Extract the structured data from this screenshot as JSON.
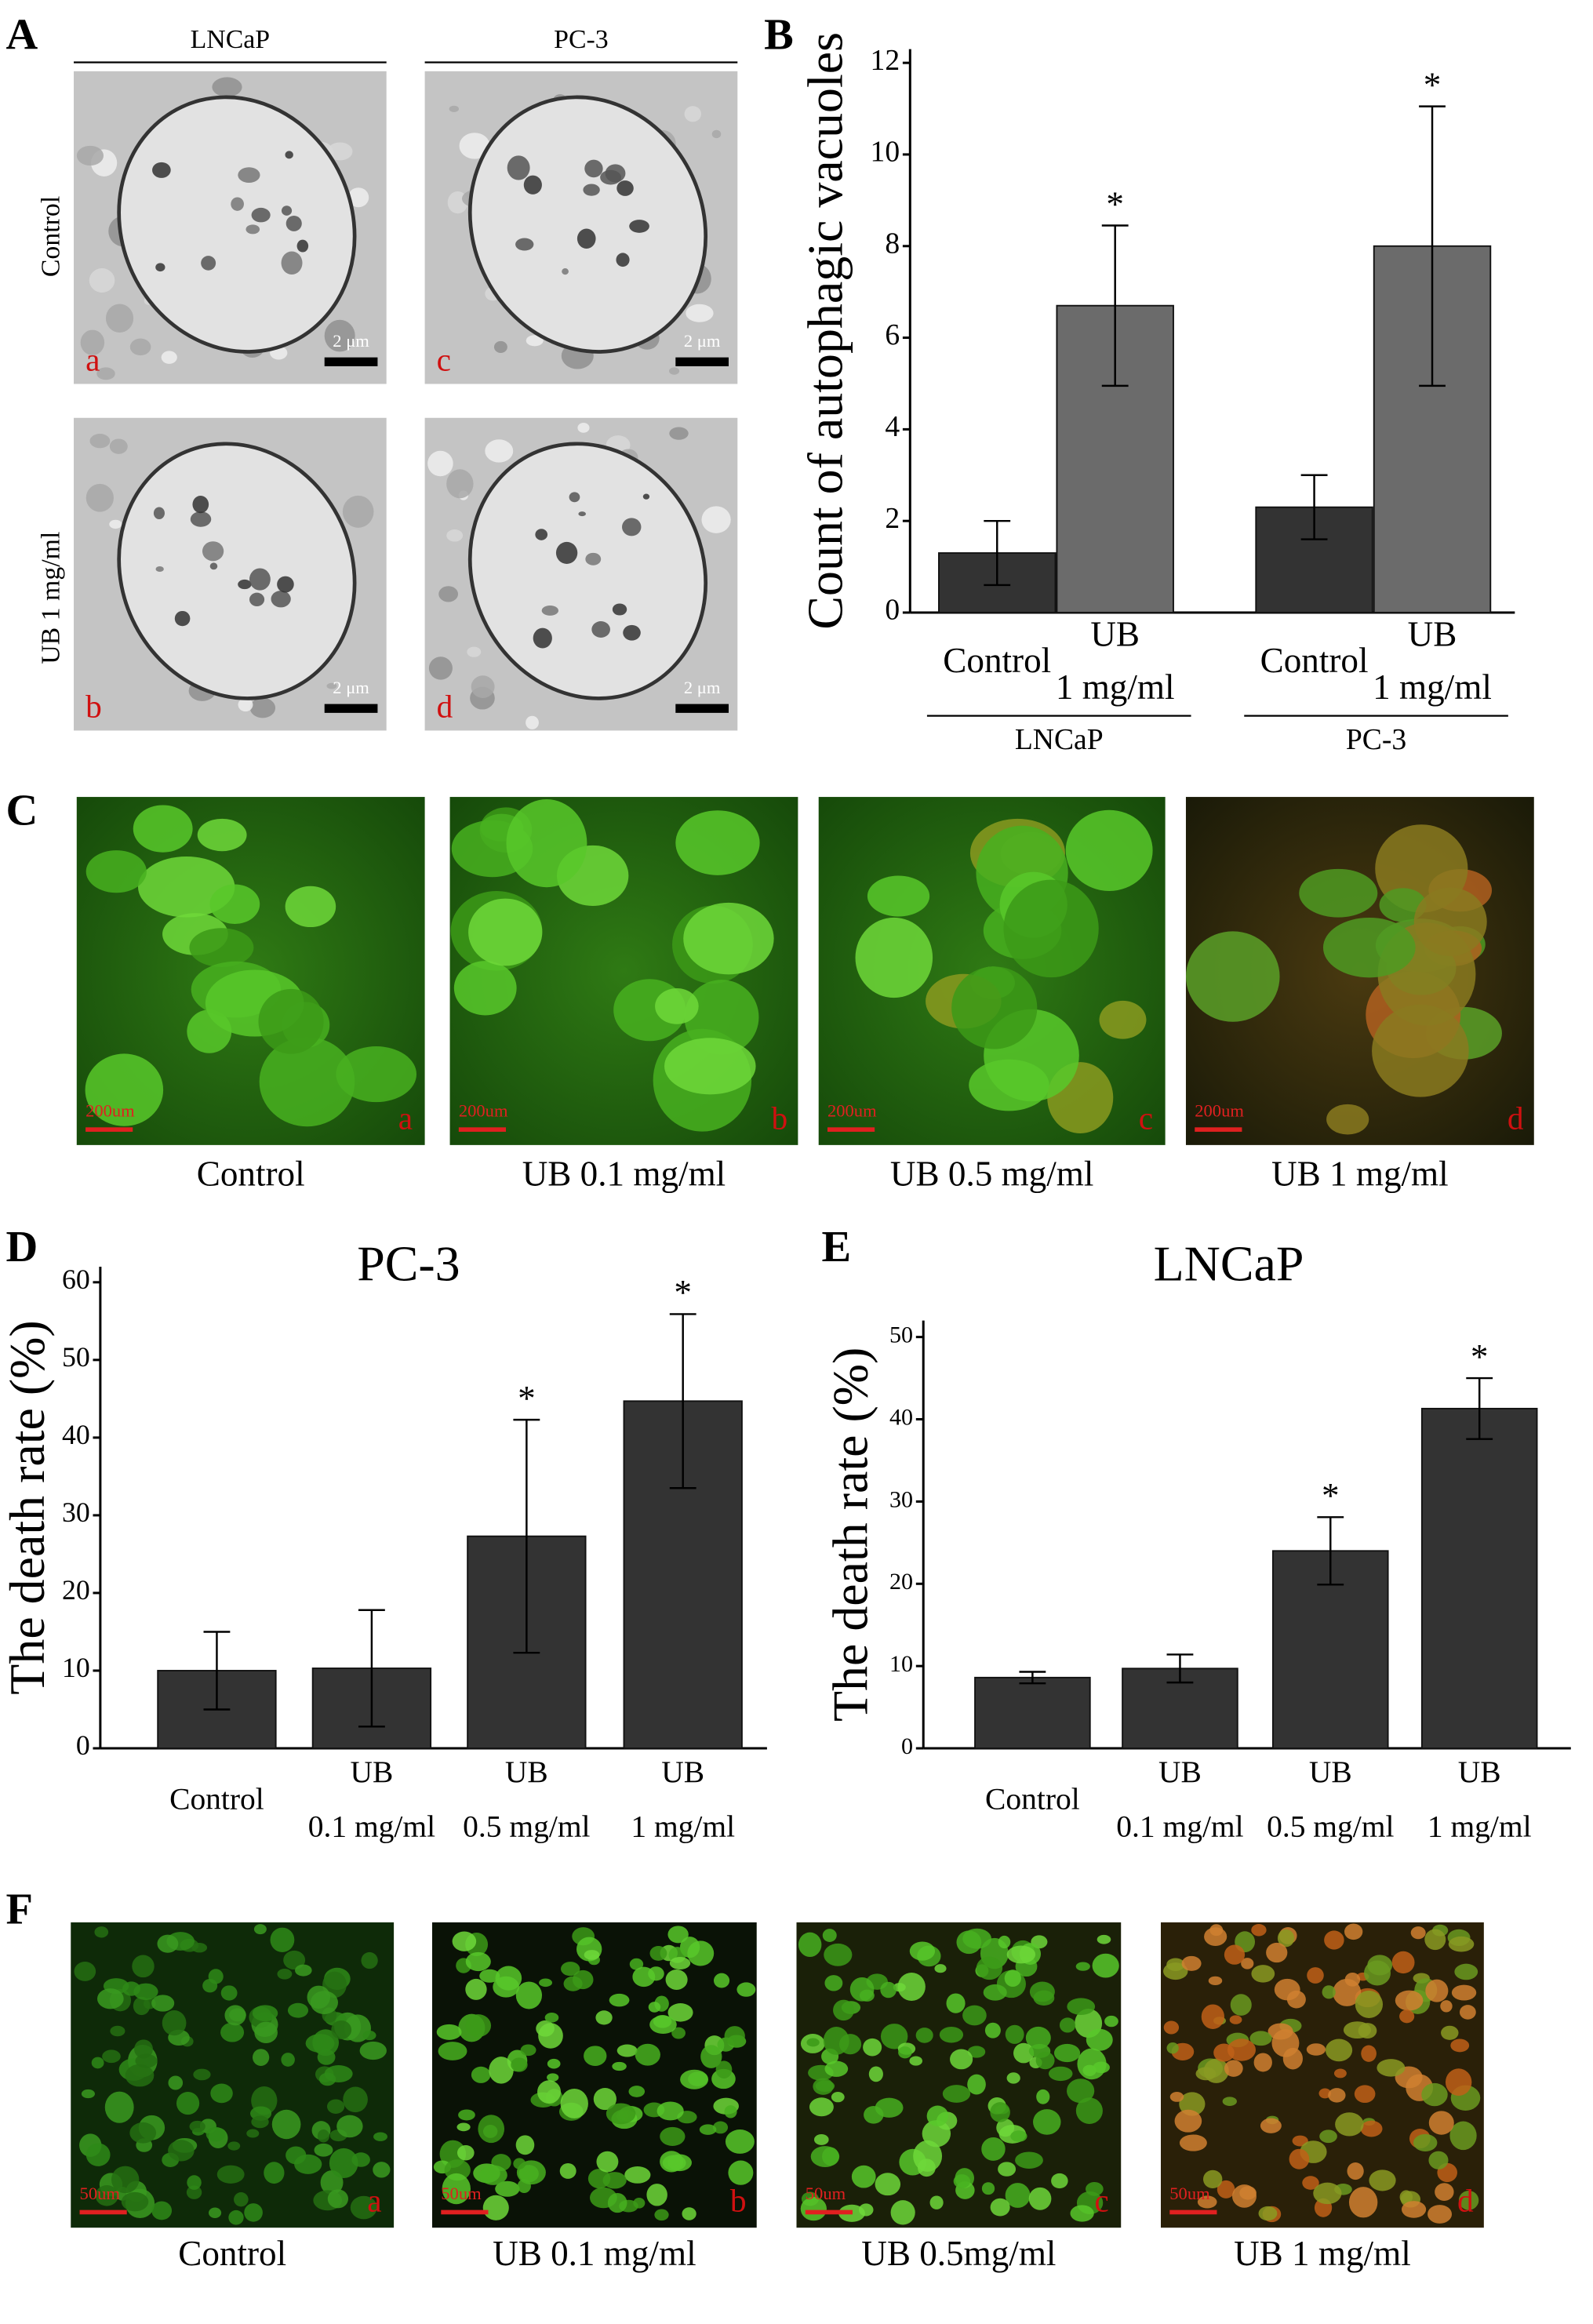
{
  "figure": {
    "panel_labels": [
      "A",
      "B",
      "C",
      "D",
      "E",
      "F"
    ],
    "panel_a": {
      "columns": [
        "LNCaP",
        "PC-3"
      ],
      "rows": [
        "Control",
        "UB 1 mg/ml"
      ],
      "images": [
        {
          "letter": "a",
          "scale": "2 μm"
        },
        {
          "letter": "c",
          "scale": "2 μm"
        },
        {
          "letter": "b",
          "scale": "2 μm"
        },
        {
          "letter": "d",
          "scale": "2 μm"
        }
      ]
    },
    "panel_c": {
      "images": [
        {
          "letter": "a",
          "scale": "200um",
          "caption": "Control"
        },
        {
          "letter": "b",
          "scale": "200um",
          "caption": "UB 0.1 mg/ml"
        },
        {
          "letter": "c",
          "scale": "200um",
          "caption": "UB 0.5 mg/ml"
        },
        {
          "letter": "d",
          "scale": "200um",
          "caption": "UB 1 mg/ml"
        }
      ]
    },
    "panel_f": {
      "images": [
        {
          "letter": "a",
          "scale": "50um",
          "caption": "Control"
        },
        {
          "letter": "b",
          "scale": "50um",
          "caption": "UB 0.1 mg/ml"
        },
        {
          "letter": "c",
          "scale": "50um",
          "caption": "UB 0.5mg/ml"
        },
        {
          "letter": "d",
          "scale": "50um",
          "caption": "UB 1 mg/ml"
        }
      ]
    }
  },
  "chart_data": [
    {
      "type": "bar",
      "ylabel": "Count of autophagic vacuoles",
      "categories": [
        [
          "Control"
        ],
        [
          "UB",
          "1 mg/ml"
        ],
        [
          "Control"
        ],
        [
          "UB",
          "1 mg/ml"
        ]
      ],
      "groups": [
        "LNCaP",
        "PC-3"
      ],
      "values": [
        1.3,
        6.7,
        2.3,
        8.0
      ],
      "errors": [
        0.7,
        1.75,
        0.7,
        3.05
      ],
      "significance": [
        null,
        "*",
        null,
        "*"
      ],
      "colors": [
        "#333333",
        "#6b6b6b",
        "#333333",
        "#6b6b6b"
      ],
      "ylim": [
        0,
        12.3
      ],
      "yticks": [
        0,
        2,
        4,
        6,
        8,
        10,
        12
      ]
    },
    {
      "type": "bar",
      "title": "PC-3",
      "ylabel": "The death rate (%)",
      "categories": [
        [
          "Control"
        ],
        [
          "UB",
          "0.1 mg/ml"
        ],
        [
          "UB",
          "0.5 mg/ml"
        ],
        [
          "UB",
          "1 mg/ml"
        ]
      ],
      "values": [
        10,
        10.3,
        27.3,
        44.7
      ],
      "errors": [
        5,
        7.5,
        15,
        11.2
      ],
      "significance": [
        null,
        null,
        "*",
        "*"
      ],
      "colors": [
        "#333333",
        "#333333",
        "#333333",
        "#333333"
      ],
      "ylim": [
        0,
        62
      ],
      "yticks": [
        0,
        10,
        20,
        30,
        40,
        50,
        60
      ]
    },
    {
      "type": "bar",
      "title": "LNCaP",
      "ylabel": "The death rate (%)",
      "categories": [
        [
          "Control"
        ],
        [
          "UB",
          "0.1 mg/ml"
        ],
        [
          "UB",
          "0.5 mg/ml"
        ],
        [
          "UB",
          "1 mg/ml"
        ]
      ],
      "values": [
        8.6,
        9.7,
        24,
        41.3
      ],
      "errors": [
        0.7,
        1.7,
        4.1,
        3.7
      ],
      "significance": [
        null,
        null,
        "*",
        "*"
      ],
      "colors": [
        "#333333",
        "#333333",
        "#333333",
        "#333333"
      ],
      "ylim": [
        0,
        52
      ],
      "yticks": [
        0,
        10,
        20,
        30,
        40,
        50
      ]
    }
  ]
}
